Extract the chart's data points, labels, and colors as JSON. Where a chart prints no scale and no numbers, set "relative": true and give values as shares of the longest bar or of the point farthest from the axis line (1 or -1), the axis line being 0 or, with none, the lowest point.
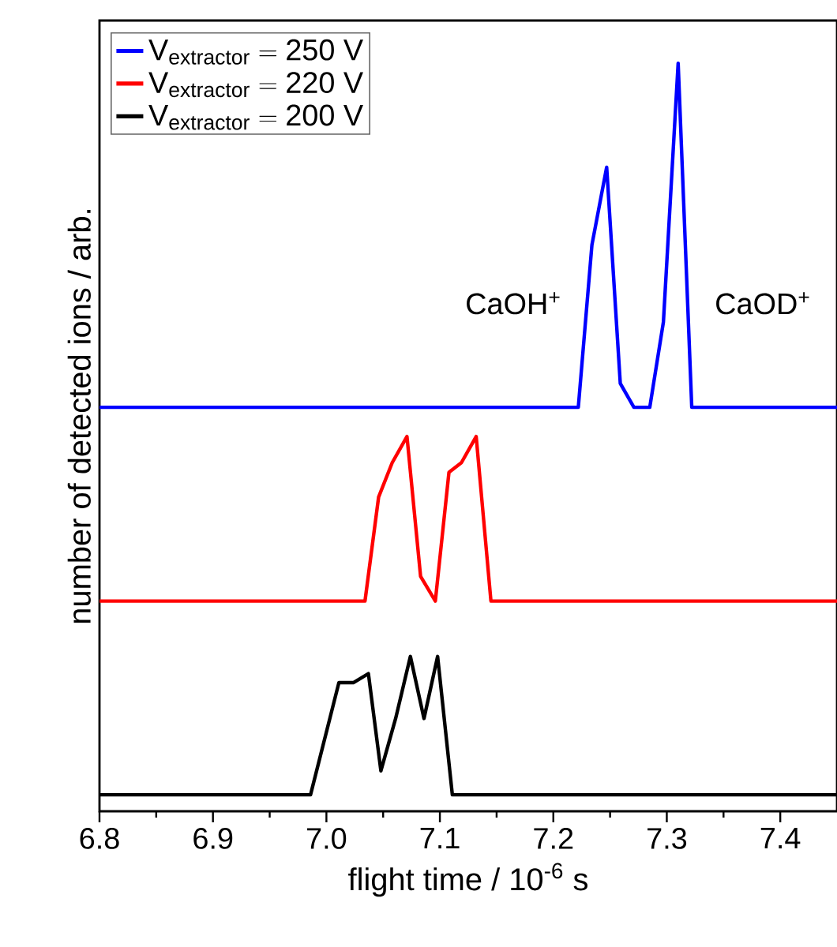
{
  "chart_data": {
    "type": "line",
    "relative": true,
    "xlabel": "flight time / 10$^{-6}$ s",
    "ylabel": "number of detected ions / arb.",
    "xlim": [
      6.8,
      7.45
    ],
    "xticks": [
      6.8,
      6.9,
      {
        "value": 7.0,
        "label": "7.0"
      },
      7.1,
      7.2,
      7.3,
      7.4
    ],
    "annotations": [
      "CaOH$^{+}$",
      "CaOD$^{+}$"
    ],
    "legend": "top left",
    "marker": "none",
    "line_style": "solid",
    "series": [
      {
        "name": "\\mathrm{V}_{\\mathrm{extractor}} = \\mathrm{250\\ V}",
        "color": "#0000ff",
        "x": [
          6.8,
          7.222,
          7.234,
          7.247,
          7.259,
          7.271,
          7.285,
          7.297,
          7.31,
          7.322,
          7.45
        ],
        "values": [
          0.54,
          0.54,
          0.757,
          0.861,
          0.572,
          0.54,
          0.54,
          0.654,
          1.0,
          0.54,
          0.54
        ]
      },
      {
        "name": "\\mathrm{V}_{\\mathrm{extractor}} = \\mathrm{220\\ V}",
        "color": "#ff0000",
        "x": [
          6.8,
          7.034,
          7.046,
          7.058,
          7.071,
          7.083,
          7.096,
          7.108,
          7.119,
          7.132,
          7.145,
          7.45
        ],
        "values": [
          0.281,
          0.281,
          0.42,
          0.466,
          0.501,
          0.314,
          0.281,
          0.453,
          0.466,
          0.501,
          0.281,
          0.281
        ]
      },
      {
        "name": "\\mathrm{V}_{\\mathrm{extractor}} = \\mathrm{200\\ V}",
        "color": "#000000",
        "x": [
          6.8,
          6.986,
          7.011,
          7.024,
          7.037,
          7.048,
          7.061,
          7.074,
          7.086,
          7.098,
          7.111,
          7.45
        ],
        "values": [
          0.022,
          0.022,
          0.172,
          0.172,
          0.184,
          0.054,
          0.124,
          0.207,
          0.124,
          0.207,
          0.022,
          0.022
        ]
      }
    ]
  }
}
